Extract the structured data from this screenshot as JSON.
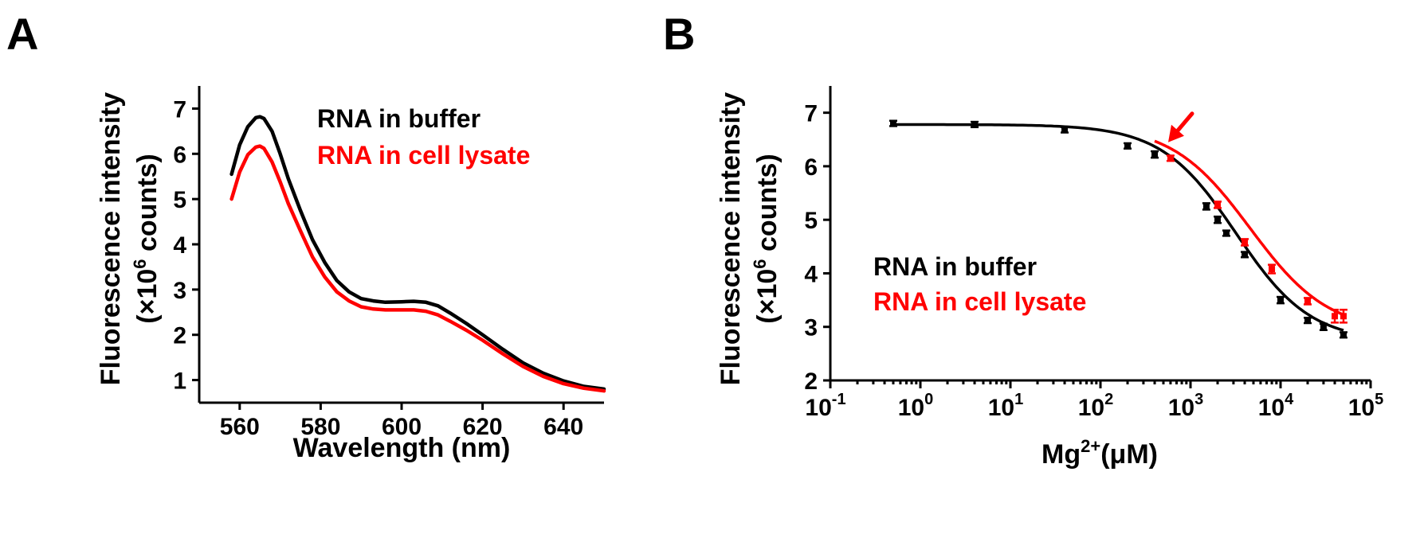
{
  "chart_data": [
    {
      "panel": "A",
      "type": "line",
      "xlabel": "Wavelength (nm)",
      "ylabel_line1": "Fluorescence intensity",
      "ylabel_line2_pre": "(×10",
      "ylabel_line2_sup": "6",
      "ylabel_line2_post": " counts)",
      "xlim": [
        550,
        650
      ],
      "ylim": [
        0.5,
        7.5
      ],
      "xticks": [
        560,
        580,
        600,
        620,
        640
      ],
      "yticks": [
        1,
        2,
        3,
        4,
        5,
        6,
        7
      ],
      "legend": [
        "RNA in buffer",
        "RNA in cell lysate"
      ],
      "series": [
        {
          "name": "RNA in buffer",
          "color": "#000000",
          "x": [
            558,
            560,
            562,
            564,
            565,
            566,
            568,
            570,
            572,
            575,
            578,
            581,
            584,
            587,
            590,
            593,
            596,
            600,
            603,
            606,
            609,
            612,
            616,
            620,
            625,
            630,
            635,
            640,
            645,
            650
          ],
          "y": [
            5.55,
            6.2,
            6.6,
            6.8,
            6.82,
            6.78,
            6.5,
            6.0,
            5.45,
            4.75,
            4.1,
            3.6,
            3.2,
            2.95,
            2.8,
            2.75,
            2.72,
            2.73,
            2.74,
            2.72,
            2.64,
            2.48,
            2.25,
            2.0,
            1.68,
            1.38,
            1.15,
            0.98,
            0.86,
            0.8
          ]
        },
        {
          "name": "RNA in cell lysate",
          "color": "#ff0000",
          "x": [
            558,
            560,
            562,
            564,
            565,
            566,
            568,
            570,
            572,
            575,
            578,
            581,
            584,
            587,
            590,
            593,
            596,
            600,
            603,
            606,
            609,
            612,
            616,
            620,
            625,
            630,
            635,
            640,
            645,
            650
          ],
          "y": [
            5.0,
            5.6,
            5.98,
            6.15,
            6.17,
            6.12,
            5.82,
            5.38,
            4.9,
            4.3,
            3.72,
            3.28,
            2.95,
            2.75,
            2.62,
            2.57,
            2.55,
            2.55,
            2.55,
            2.52,
            2.44,
            2.3,
            2.1,
            1.88,
            1.58,
            1.3,
            1.08,
            0.92,
            0.82,
            0.76
          ]
        }
      ]
    },
    {
      "panel": "B",
      "type": "scatter",
      "xscale": "log",
      "xlabel_pre": "Mg",
      "xlabel_sup": "2+",
      "xlabel_post": "(μM)",
      "ylabel_line1": "Fluorescence intensity",
      "ylabel_line2_pre": "(×10",
      "ylabel_line2_sup": "6",
      "ylabel_line2_post": " counts)",
      "xlim_log10": [
        -1,
        5
      ],
      "ylim": [
        2,
        7.5
      ],
      "xtick_base": "10",
      "xtick_exponents": [
        "-1",
        "0",
        "1",
        "2",
        "3",
        "4",
        "5"
      ],
      "yticks": [
        2,
        3,
        4,
        5,
        6,
        7
      ],
      "legend": [
        "RNA in buffer",
        "RNA in cell lysate"
      ],
      "series": [
        {
          "name": "RNA in buffer",
          "color": "#000000",
          "x": [
            0.5,
            4,
            40,
            200,
            400,
            1500,
            2000,
            2500,
            4000,
            10000,
            20000,
            30000,
            50000
          ],
          "y": [
            6.8,
            6.78,
            6.68,
            6.38,
            6.22,
            5.25,
            5.0,
            4.75,
            4.35,
            3.5,
            3.12,
            3.0,
            2.85
          ],
          "err": [
            0.05,
            0.05,
            0.05,
            0.05,
            0.06,
            0.06,
            0.06,
            0.05,
            0.05,
            0.06,
            0.05,
            0.06,
            0.05
          ],
          "fit": {
            "top": 6.78,
            "bottom": 2.72,
            "ec50": 3200,
            "hill": 1.05
          }
        },
        {
          "name": "RNA in cell lysate",
          "color": "#ff0000",
          "x": [
            600,
            2000,
            4000,
            8000,
            20000,
            40000,
            50000
          ],
          "y": [
            6.15,
            5.28,
            4.58,
            4.08,
            3.48,
            3.2,
            3.2
          ],
          "err": [
            0.05,
            0.06,
            0.06,
            0.08,
            0.06,
            0.12,
            0.12
          ],
          "fit": {
            "top": 6.78,
            "bottom": 2.9,
            "ec50": 4600,
            "hill": 1.0
          }
        }
      ],
      "annotation": {
        "type": "arrow",
        "points_to_x": 500,
        "points_to_y": 6.3,
        "color": "#ff0000"
      }
    }
  ],
  "panels": {
    "a_label": "A",
    "b_label": "B"
  }
}
